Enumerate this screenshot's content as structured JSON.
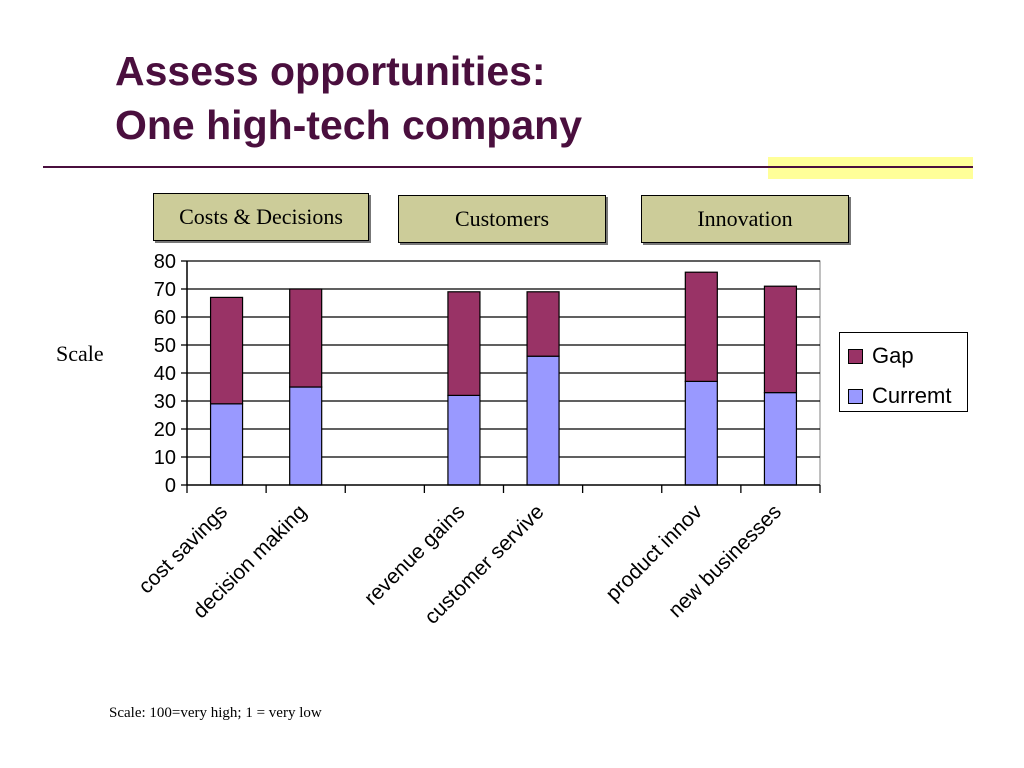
{
  "slide": {
    "title_line1": "Assess opportunities:",
    "title_line2": "One high-tech company",
    "footnote": "Scale: 100=very high; 1 = very low",
    "accent_color": "#ffff99",
    "title_color": "#4a0f3e"
  },
  "groups": [
    {
      "label": "Costs & Decisions"
    },
    {
      "label": "Customers"
    },
    {
      "label": "Innovation"
    }
  ],
  "chart_data": {
    "type": "bar",
    "stacked": true,
    "title": "",
    "xlabel": "",
    "ylabel": "Scale",
    "ylim": [
      0,
      80
    ],
    "yticks": [
      0,
      10,
      20,
      30,
      40,
      50,
      60,
      70,
      80
    ],
    "grid": true,
    "legend_position": "right",
    "categories": [
      "cost savings",
      "decision making",
      "",
      "revenue gains",
      "customer servive",
      "",
      "product innov",
      "new businesses"
    ],
    "series": [
      {
        "name": "Curremt",
        "color": "#9999ff",
        "values": [
          29,
          35,
          null,
          32,
          46,
          null,
          37,
          33
        ]
      },
      {
        "name": "Gap",
        "color": "#993366",
        "values": [
          38,
          35,
          null,
          37,
          23,
          null,
          39,
          38
        ]
      }
    ]
  }
}
